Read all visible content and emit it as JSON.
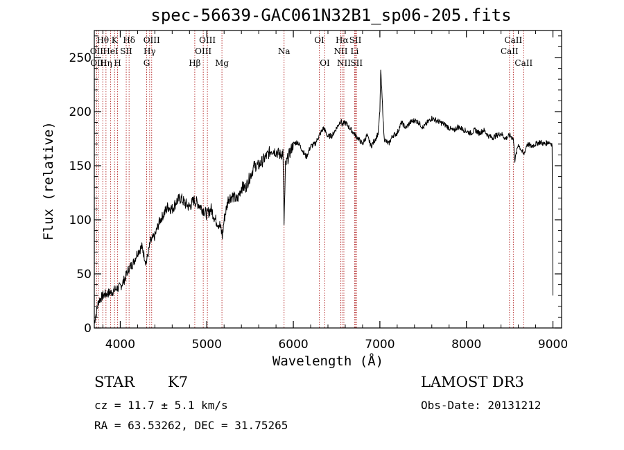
{
  "chart_data": {
    "type": "line",
    "title": "spec-56639-GAC061N32B1_sp06-205.fits",
    "xlabel": "Wavelength (Å)",
    "ylabel": "Flux (relative)",
    "xlim": [
      3700,
      9100
    ],
    "ylim": [
      0,
      275
    ],
    "xticks": [
      4000,
      5000,
      6000,
      7000,
      8000,
      9000
    ],
    "yticks": [
      0,
      50,
      100,
      150,
      200,
      250
    ],
    "spectrum": {
      "name": "flux",
      "x": [
        3700,
        3750,
        3800,
        3850,
        3900,
        3950,
        4000,
        4050,
        4100,
        4150,
        4200,
        4250,
        4300,
        4350,
        4400,
        4450,
        4500,
        4550,
        4600,
        4650,
        4700,
        4750,
        4800,
        4850,
        4900,
        4950,
        5000,
        5050,
        5100,
        5150,
        5180,
        5200,
        5250,
        5300,
        5350,
        5400,
        5450,
        5500,
        5550,
        5600,
        5650,
        5700,
        5750,
        5800,
        5850,
        5880,
        5893,
        5910,
        5950,
        6000,
        6050,
        6100,
        6150,
        6200,
        6250,
        6300,
        6350,
        6400,
        6450,
        6500,
        6550,
        6563,
        6600,
        6650,
        6700,
        6750,
        6800,
        6850,
        6900,
        6950,
        6980,
        7000,
        7010,
        7050,
        7100,
        7150,
        7200,
        7250,
        7300,
        7350,
        7400,
        7450,
        7500,
        7550,
        7600,
        7650,
        7700,
        7750,
        7800,
        7850,
        7900,
        7950,
        8000,
        8050,
        8100,
        8150,
        8200,
        8250,
        8300,
        8350,
        8400,
        8450,
        8500,
        8542,
        8560,
        8600,
        8662,
        8700,
        8750,
        8800,
        8850,
        8900,
        8950,
        8990,
        9000
      ],
      "y": [
        5,
        25,
        30,
        32,
        33,
        36,
        38,
        45,
        55,
        60,
        70,
        75,
        60,
        80,
        85,
        98,
        105,
        112,
        110,
        117,
        120,
        115,
        112,
        118,
        115,
        110,
        105,
        110,
        100,
        95,
        85,
        100,
        120,
        122,
        118,
        130,
        130,
        140,
        150,
        150,
        155,
        160,
        165,
        163,
        160,
        162,
        97,
        150,
        160,
        170,
        172,
        165,
        158,
        168,
        170,
        178,
        185,
        177,
        178,
        185,
        192,
        188,
        190,
        185,
        180,
        175,
        170,
        178,
        168,
        175,
        180,
        200,
        238,
        175,
        170,
        178,
        180,
        190,
        185,
        190,
        192,
        190,
        185,
        190,
        194,
        192,
        190,
        188,
        185,
        182,
        186,
        184,
        182,
        180,
        183,
        180,
        183,
        178,
        176,
        178,
        180,
        175,
        178,
        175,
        155,
        170,
        160,
        170,
        168,
        170,
        172,
        170,
        172,
        170,
        30
      ]
    },
    "line_markers": [
      {
        "label": "Hθ",
        "wavelength": 3798,
        "row": 1
      },
      {
        "label": "OII",
        "wavelength": 3727,
        "row": 2
      },
      {
        "label": "OIII",
        "wavelength": 3750,
        "row": 3
      },
      {
        "label": "HeI",
        "wavelength": 3889,
        "row": 2
      },
      {
        "label": "Hη",
        "wavelength": 3835,
        "row": 3
      },
      {
        "label": "K",
        "wavelength": 3934,
        "row": 1
      },
      {
        "label": "SII",
        "wavelength": 4069,
        "row": 2
      },
      {
        "label": "H",
        "wavelength": 3969,
        "row": 3
      },
      {
        "label": "Hδ",
        "wavelength": 4102,
        "row": 1
      },
      {
        "label": "OIII",
        "wavelength": 4363,
        "row": 1
      },
      {
        "label": "Hγ",
        "wavelength": 4340,
        "row": 2
      },
      {
        "label": "G",
        "wavelength": 4305,
        "row": 3
      },
      {
        "label": "Hβ",
        "wavelength": 4861,
        "row": 3
      },
      {
        "label": "OIII",
        "wavelength": 4959,
        "row": 2
      },
      {
        "label": "OIII",
        "wavelength": 5007,
        "row": 1
      },
      {
        "label": "Mg",
        "wavelength": 5175,
        "row": 3
      },
      {
        "label": "Na",
        "wavelength": 5893,
        "row": 2
      },
      {
        "label": "OI",
        "wavelength": 6300,
        "row": 1
      },
      {
        "label": "OI",
        "wavelength": 6364,
        "row": 3
      },
      {
        "label": "Hα",
        "wavelength": 6563,
        "row": 1
      },
      {
        "label": "NII",
        "wavelength": 6548,
        "row": 2
      },
      {
        "label": "NII",
        "wavelength": 6584,
        "row": 3
      },
      {
        "label": "SII",
        "wavelength": 6717,
        "row": 1
      },
      {
        "label": "Li",
        "wavelength": 6708,
        "row": 2
      },
      {
        "label": "SII",
        "wavelength": 6731,
        "row": 3
      },
      {
        "label": "CaII",
        "wavelength": 8542,
        "row": 1
      },
      {
        "label": "CaII",
        "wavelength": 8498,
        "row": 2
      },
      {
        "label": "CaII",
        "wavelength": 8662,
        "row": 3
      }
    ]
  },
  "info": {
    "class": "STAR",
    "subclass": "K7",
    "survey": "LAMOST DR3",
    "cz": "cz = 11.7 ± 5.1 km/s",
    "obs_date": "Obs-Date: 20131212",
    "coords": "RA =  63.53262, DEC =  31.75265"
  }
}
